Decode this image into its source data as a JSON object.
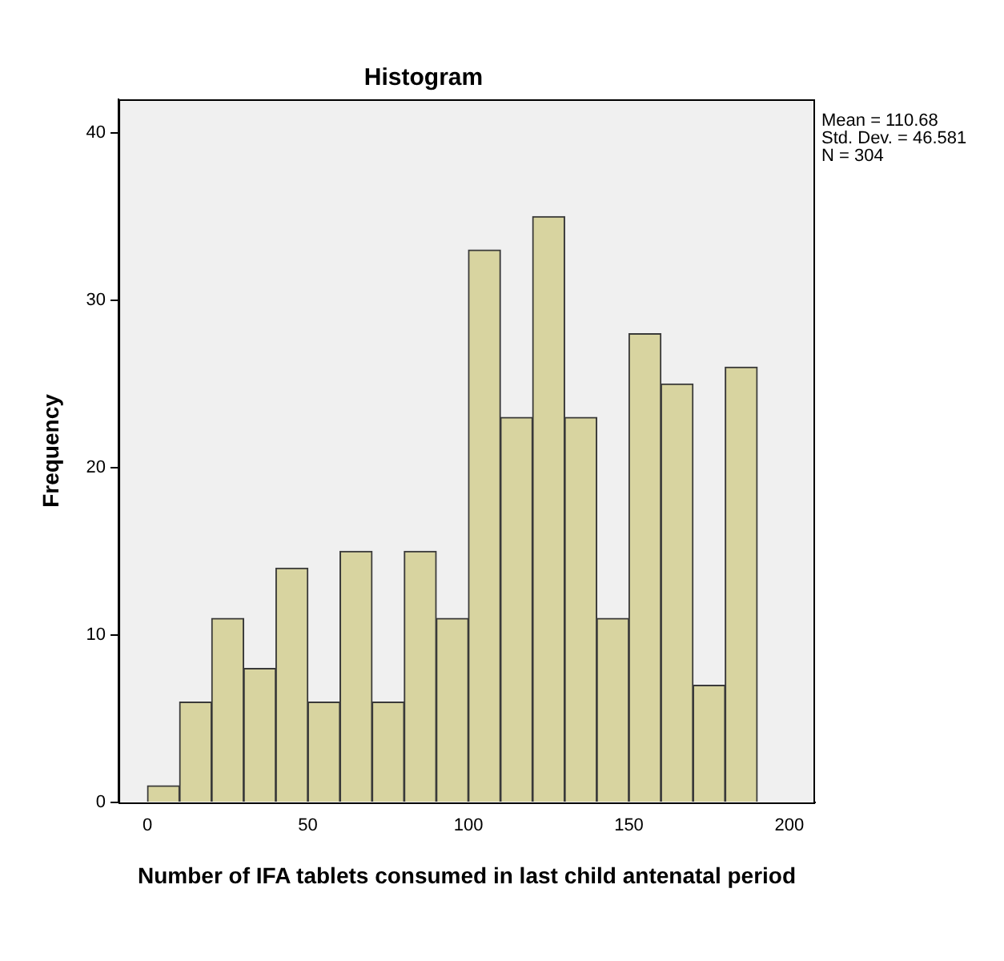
{
  "chart_data": {
    "type": "histogram",
    "title": "Histogram",
    "xlabel": "Number of IFA tablets consumed in last child antenatal period",
    "ylabel": "Frequency",
    "bins": [
      0,
      10,
      20,
      30,
      40,
      50,
      60,
      70,
      80,
      90,
      100,
      110,
      120,
      130,
      140,
      150,
      160,
      170,
      180,
      190
    ],
    "values": [
      1,
      6,
      11,
      8,
      14,
      6,
      15,
      6,
      15,
      11,
      33,
      23,
      35,
      23,
      11,
      28,
      25,
      7,
      26
    ],
    "color": "#d8d4a0",
    "xlim": [
      -9,
      208
    ],
    "xticks": [
      0,
      50,
      100,
      150,
      200
    ],
    "ylim": [
      0,
      42
    ],
    "yticks": [
      0,
      10,
      20,
      30,
      40
    ],
    "grid": false,
    "legend": false,
    "annotations": [
      "Mean = 110.68",
      "Std. Dev. = 46.581",
      "N = 304"
    ]
  }
}
